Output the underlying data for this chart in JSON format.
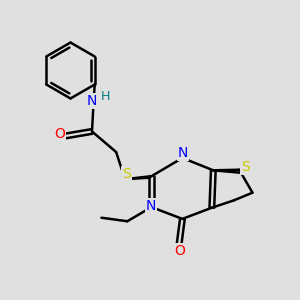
{
  "background_color": "#e0e0e0",
  "atom_colors": {
    "C": "#000000",
    "N": "#0000ff",
    "O": "#ff0000",
    "S": "#cccc00",
    "H": "#008080"
  },
  "bond_color": "#000000",
  "bond_width": 1.8,
  "figsize": [
    3.0,
    3.0
  ],
  "dpi": 100
}
